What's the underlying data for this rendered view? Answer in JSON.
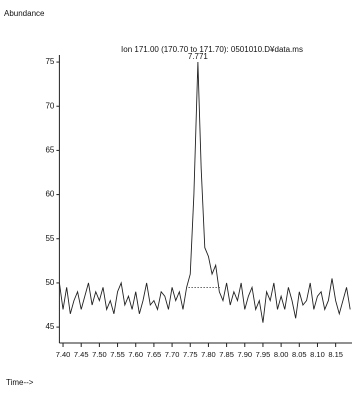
{
  "chart_data": {
    "type": "line",
    "title": "Ion 171.00 (170.70 to 171.70): 0501010.D¥data.ms",
    "y_label": "Abundance",
    "x_label": "Time-->",
    "annotations": [
      {
        "text": "7.771",
        "x": 7.771,
        "y": 75
      }
    ],
    "x": [
      7.39,
      7.4,
      7.41,
      7.42,
      7.43,
      7.44,
      7.45,
      7.46,
      7.47,
      7.48,
      7.49,
      7.5,
      7.51,
      7.52,
      7.53,
      7.54,
      7.55,
      7.56,
      7.57,
      7.58,
      7.59,
      7.6,
      7.61,
      7.62,
      7.63,
      7.64,
      7.65,
      7.66,
      7.67,
      7.68,
      7.69,
      7.7,
      7.71,
      7.72,
      7.73,
      7.74,
      7.75,
      7.76,
      7.771,
      7.78,
      7.79,
      7.8,
      7.81,
      7.82,
      7.83,
      7.84,
      7.85,
      7.86,
      7.87,
      7.88,
      7.89,
      7.9,
      7.91,
      7.92,
      7.93,
      7.94,
      7.95,
      7.96,
      7.97,
      7.98,
      7.99,
      8.0,
      8.01,
      8.02,
      8.03,
      8.04,
      8.05,
      8.06,
      8.07,
      8.08,
      8.09,
      8.1,
      8.11,
      8.12,
      8.13,
      8.14,
      8.15,
      8.16,
      8.17,
      8.18,
      8.19
    ],
    "series": [
      {
        "color": "#222222",
        "values": [
          50,
          47,
          49.5,
          46.5,
          48,
          49,
          47,
          48.5,
          50,
          47.5,
          49,
          48,
          49.5,
          47,
          48,
          46.5,
          49,
          50,
          47.5,
          48.5,
          47,
          49,
          46.5,
          48,
          50,
          47.5,
          48,
          47,
          49,
          48.5,
          47,
          49.5,
          48,
          49,
          47,
          49.5,
          51,
          60,
          75,
          63,
          54,
          53,
          51,
          52,
          49,
          48,
          50,
          47.5,
          49,
          48,
          50,
          47,
          48.5,
          49.5,
          47,
          48,
          45.5,
          49,
          48,
          50,
          47,
          48.5,
          47,
          49.5,
          48,
          46,
          49,
          47.5,
          48,
          50,
          47,
          48.5,
          49,
          47,
          48,
          50.5,
          48,
          46.5,
          48,
          49.5,
          47
        ]
      }
    ],
    "baseline": {
      "x": [
        7.745,
        7.835
      ],
      "values": [
        49.5,
        49.5
      ]
    },
    "xlim": [
      7.39,
      8.195
    ],
    "ylim": [
      43.2,
      75.8
    ],
    "xticks": [
      {
        "value": 7.4,
        "label": "7.40"
      },
      7.45,
      {
        "value": 7.5,
        "label": "7.50"
      },
      7.55,
      {
        "value": 7.6,
        "label": "7.60"
      },
      7.65,
      {
        "value": 7.7,
        "label": "7.70"
      },
      7.75,
      {
        "value": 7.8,
        "label": "7.80"
      },
      7.85,
      {
        "value": 7.9,
        "label": "7.90"
      },
      7.95,
      {
        "value": 8,
        "label": "8.00"
      },
      8.05,
      {
        "value": 8.1,
        "label": "8.10"
      },
      8.15
    ],
    "yticks": [
      45,
      50,
      55,
      60,
      65,
      70,
      75
    ],
    "grid": false
  }
}
